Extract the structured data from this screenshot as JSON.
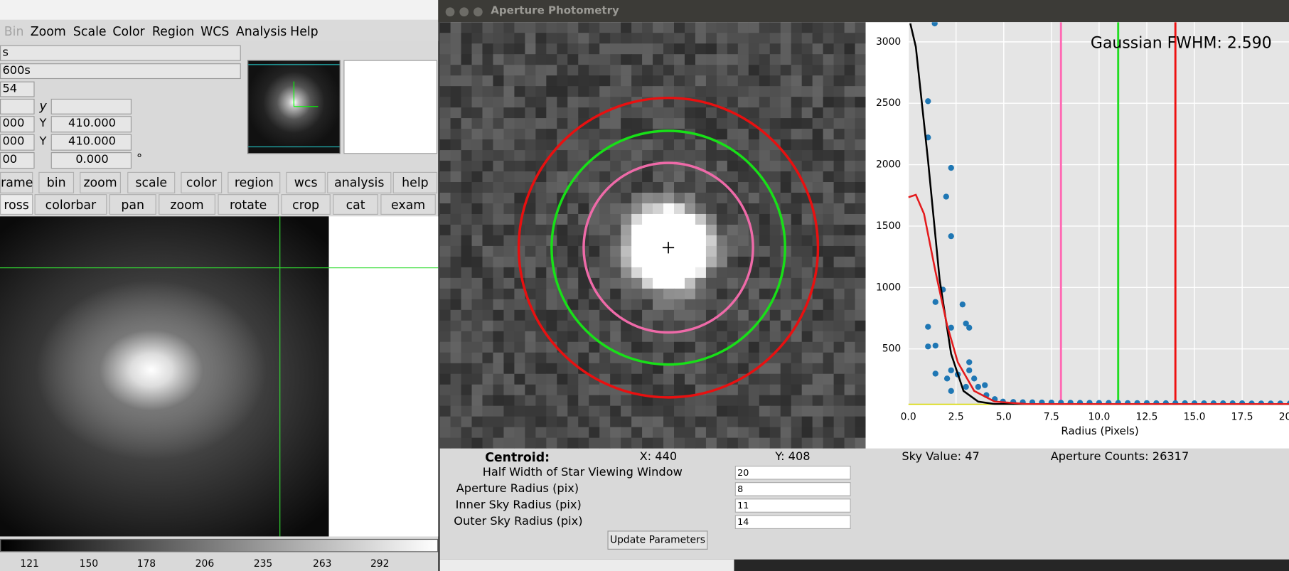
{
  "ds9": {
    "menu": [
      "Bin",
      "Zoom",
      "Scale",
      "Color",
      "Region",
      "WCS",
      "Analysis",
      "Help"
    ],
    "info": {
      "object": "s",
      "exposure": "600s",
      "row3": "54",
      "y_label": "y",
      "row5_left": "000",
      "row5_axis": "Y",
      "row5_value": "410.000",
      "row6_left": "000",
      "row6_axis": "Y",
      "row6_value": "410.000",
      "row7_left": "00",
      "row7_value": "0.000",
      "row7_unit": "°"
    },
    "buttons_row1": [
      "rame",
      "bin",
      "zoom",
      "scale",
      "color",
      "region",
      "wcs",
      "analysis",
      "help"
    ],
    "buttons_row2": [
      "ross",
      "colorbar",
      "pan",
      "zoom",
      "rotate",
      "crop",
      "cat",
      "exam"
    ],
    "colorbar_labels": [
      "121",
      "150",
      "178",
      "206",
      "235",
      "263",
      "292"
    ]
  },
  "photometry": {
    "window_title": "Aperture Photometry",
    "centroid_label": "Centroid:",
    "centroid_x": "X: 440",
    "centroid_y": "Y: 408",
    "sky_value": "Sky Value: 47",
    "aperture_counts": "Aperture Counts: 26317",
    "fields": [
      {
        "label": "Half Width of Star Viewing Window",
        "value": "20"
      },
      {
        "label": "Aperture Radius (pix)",
        "value": "8"
      },
      {
        "label": "Inner Sky Radius (pix)",
        "value": "11"
      },
      {
        "label": "Outer Sky Radius (pix)",
        "value": "14"
      }
    ],
    "button": "Update Parameters"
  },
  "chart_data": {
    "type": "scatter",
    "annotation": "Gaussian FWHM: 2.590",
    "x_label": "Radius (Pixels)",
    "xlim": [
      0,
      20
    ],
    "ylim": [
      45,
      3160
    ],
    "xticks": [
      {
        "value": 0,
        "label": "0.0"
      },
      {
        "value": 2.5,
        "label": "2.5"
      },
      {
        "value": 5,
        "label": "5.0"
      },
      {
        "value": 7.5,
        "label": "7.5"
      },
      {
        "value": 10,
        "label": "10.0"
      },
      {
        "value": 12.5,
        "label": "12.5"
      },
      {
        "value": 15,
        "label": "15.0"
      },
      {
        "value": 17.5,
        "label": "17.5"
      },
      {
        "value": 20,
        "label": "20.0"
      }
    ],
    "yticks": [
      500,
      1000,
      1500,
      2000,
      2500,
      3000
    ],
    "grid": true,
    "series": [
      {
        "type": "scatter",
        "color": "#1f77b4",
        "x": [
          1.38,
          1.03,
          1.03,
          2.24,
          1.98,
          2.24,
          1.42,
          2.84,
          3.02,
          3.19,
          1.03,
          1.03,
          1.42,
          1.42,
          1.81,
          2.24,
          3.19,
          3.19,
          2.24,
          2.03,
          2.24,
          2.59,
          3.02,
          3.45,
          3.66,
          4.01,
          4.09,
          4.53,
          4.96,
          5.5,
          6.0,
          6.5,
          7.0,
          7.5,
          8.0,
          8.5,
          9.0,
          9.5,
          10.0,
          10.5,
          11.0,
          11.5,
          12.0,
          12.5,
          13.0,
          13.5,
          14.0,
          14.5,
          15.0,
          15.5,
          16.0,
          16.5,
          17.0,
          17.5,
          18.0,
          18.5,
          19.0,
          19.5,
          20.0
        ],
        "values": [
          3150,
          2517,
          2222,
          1974,
          1740,
          1418,
          882,
          862,
          707,
          673,
          680,
          520,
          527,
          299,
          983,
          673,
          392,
          326,
          326,
          259,
          158,
          292,
          191,
          259,
          191,
          205,
          124,
          91,
          71,
          68,
          66,
          65,
          64,
          63,
          62,
          62,
          61,
          61,
          60,
          60,
          60,
          59,
          59,
          59,
          58,
          58,
          58,
          58,
          57,
          57,
          57,
          57,
          57,
          57,
          56,
          56,
          56,
          56,
          56
        ]
      },
      {
        "type": "line",
        "color": "#000000",
        "x": [
          0.1,
          0.39,
          1.03,
          1.64,
          2.24,
          2.89,
          3.66,
          4.53,
          20
        ],
        "values": [
          3150,
          2960,
          2035,
          1063,
          460,
          158,
          71,
          51,
          51
        ]
      },
      {
        "type": "line",
        "color": "#e41a1c",
        "x": [
          0,
          0.39,
          0.82,
          1.42,
          2.03,
          2.59,
          3.45,
          4.53,
          6.25,
          20
        ],
        "values": [
          1735,
          1755,
          1600,
          1130,
          694,
          392,
          158,
          71,
          51,
          51
        ]
      }
    ],
    "vlines": [
      {
        "x": 8,
        "color": "#ff69b4"
      },
      {
        "x": 11,
        "color": "#22dd22"
      },
      {
        "x": 14,
        "color": "#ee1111"
      }
    ],
    "hline": {
      "y": 47,
      "color": "#d8d800"
    }
  }
}
